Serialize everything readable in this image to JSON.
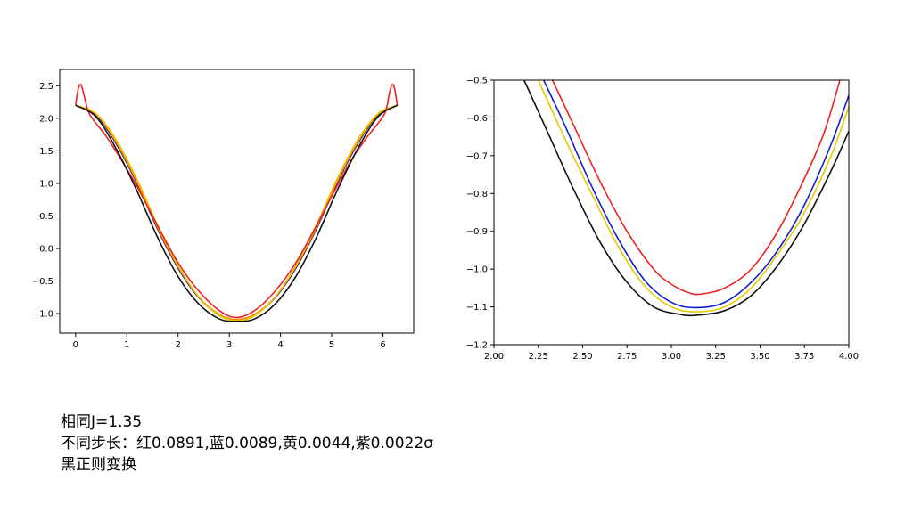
{
  "chart_data": [
    {
      "type": "line",
      "title": "",
      "xlabel": "",
      "ylabel": "",
      "xlim": [
        -0.31,
        6.6
      ],
      "ylim": [
        -1.3,
        2.75
      ],
      "xticks": [
        0,
        1,
        2,
        3,
        4,
        5,
        6
      ],
      "xtick_labels": [
        "0",
        "1",
        "2",
        "3",
        "4",
        "5",
        "6"
      ],
      "yticks": [
        -1.0,
        -0.5,
        0.0,
        0.5,
        1.0,
        1.5,
        2.0,
        2.5
      ],
      "ytick_labels": [
        "−1.0",
        "−0.5",
        "0.0",
        "0.5",
        "1.0",
        "1.5",
        "2.0",
        "2.5"
      ],
      "grid": false,
      "series": [
        {
          "color": "#00008b",
          "x": [
            0,
            0.4,
            0.8,
            1.2,
            1.6,
            2.0,
            2.4,
            2.8,
            3.14,
            3.5,
            3.9,
            4.3,
            4.7,
            5.1,
            5.5,
            5.9,
            6.28
          ],
          "values": [
            2.2,
            2.05,
            1.6,
            1.0,
            0.3,
            -0.3,
            -0.75,
            -1.02,
            -1.1,
            -1.02,
            -0.75,
            -0.3,
            0.3,
            1.0,
            1.6,
            2.05,
            2.2
          ]
        },
        {
          "color": "#ff8c00",
          "x": [
            0,
            0.4,
            0.8,
            1.2,
            1.6,
            2.0,
            2.4,
            2.8,
            3.14,
            3.5,
            3.9,
            4.3,
            4.7,
            5.1,
            5.5,
            5.9,
            6.28
          ],
          "values": [
            2.2,
            2.06,
            1.62,
            1.02,
            0.32,
            -0.28,
            -0.74,
            -1.01,
            -1.09,
            -1.01,
            -0.74,
            -0.28,
            0.32,
            1.02,
            1.62,
            2.06,
            2.2
          ]
        },
        {
          "color": "#e8c800",
          "x": [
            0,
            0.4,
            0.8,
            1.2,
            1.6,
            2.0,
            2.4,
            2.8,
            3.14,
            3.5,
            3.9,
            4.3,
            4.7,
            5.1,
            5.5,
            5.9,
            6.28
          ],
          "values": [
            2.2,
            2.07,
            1.66,
            1.06,
            0.36,
            -0.26,
            -0.74,
            -1.03,
            -1.11,
            -1.03,
            -0.74,
            -0.26,
            0.36,
            1.06,
            1.66,
            2.07,
            2.2
          ]
        },
        {
          "color": "#ee2222",
          "x": [
            0.0,
            0.05,
            0.1,
            0.15,
            0.25,
            0.4,
            0.6,
            0.9,
            1.2,
            1.6,
            2.0,
            2.4,
            2.8,
            3.14,
            3.5,
            3.9,
            4.3,
            4.7,
            5.1,
            5.4,
            5.7,
            5.9,
            6.05,
            6.13,
            6.18,
            6.23,
            6.28
          ],
          "values": [
            2.2,
            2.45,
            2.52,
            2.4,
            2.1,
            1.92,
            1.72,
            1.35,
            0.95,
            0.35,
            -0.22,
            -0.65,
            -0.95,
            -1.06,
            -0.95,
            -0.65,
            -0.22,
            0.35,
            0.95,
            1.38,
            1.72,
            1.92,
            2.1,
            2.4,
            2.52,
            2.45,
            2.2
          ]
        },
        {
          "color": "#111111",
          "x": [
            0,
            0.4,
            0.8,
            1.2,
            1.6,
            2.0,
            2.4,
            2.8,
            3.14,
            3.5,
            3.9,
            4.3,
            4.7,
            5.1,
            5.5,
            5.9,
            6.28
          ],
          "values": [
            2.2,
            2.02,
            1.52,
            0.88,
            0.17,
            -0.43,
            -0.85,
            -1.08,
            -1.12,
            -1.08,
            -0.85,
            -0.43,
            0.17,
            0.88,
            1.52,
            2.02,
            2.2
          ]
        }
      ]
    },
    {
      "type": "line",
      "title": "",
      "xlabel": "",
      "ylabel": "",
      "xlim": [
        2.0,
        4.0
      ],
      "ylim": [
        -1.2,
        -0.5
      ],
      "xticks": [
        2.0,
        2.25,
        2.5,
        2.75,
        3.0,
        3.25,
        3.5,
        3.75,
        4.0
      ],
      "xtick_labels": [
        "2.00",
        "2.25",
        "2.50",
        "2.75",
        "3.00",
        "3.25",
        "3.50",
        "3.75",
        "4.00"
      ],
      "yticks": [
        -1.2,
        -1.1,
        -1.0,
        -0.9,
        -0.8,
        -0.7,
        -0.6,
        -0.5
      ],
      "ytick_labels": [
        "−1.2",
        "−1.1",
        "−1.0",
        "−0.9",
        "−0.8",
        "−0.7",
        "−0.6",
        "−0.5"
      ],
      "grid": false,
      "series": [
        {
          "color": "#ee2222",
          "x": [
            2.33,
            2.45,
            2.6,
            2.75,
            2.9,
            3.0,
            3.1,
            3.17,
            3.3,
            3.45,
            3.6,
            3.75,
            3.86,
            3.95
          ],
          "values": [
            -0.5,
            -0.62,
            -0.77,
            -0.9,
            -1.0,
            -1.04,
            -1.063,
            -1.066,
            -1.05,
            -1.0,
            -0.9,
            -0.76,
            -0.64,
            -0.5
          ]
        },
        {
          "color": "#1020d0",
          "x": [
            2.28,
            2.4,
            2.55,
            2.7,
            2.85,
            3.0,
            3.14,
            3.3,
            3.45,
            3.6,
            3.75,
            3.9,
            4.0
          ],
          "values": [
            -0.5,
            -0.62,
            -0.78,
            -0.92,
            -1.03,
            -1.088,
            -1.102,
            -1.088,
            -1.035,
            -0.95,
            -0.83,
            -0.67,
            -0.54
          ]
        },
        {
          "color": "#e8c800",
          "x": [
            2.25,
            2.4,
            2.55,
            2.7,
            2.85,
            3.0,
            3.14,
            3.3,
            3.45,
            3.6,
            3.75,
            3.9,
            4.0
          ],
          "values": [
            -0.5,
            -0.655,
            -0.8,
            -0.94,
            -1.045,
            -1.1,
            -1.113,
            -1.1,
            -1.05,
            -0.96,
            -0.85,
            -0.7,
            -0.57
          ]
        },
        {
          "color": "#111111",
          "x": [
            2.17,
            2.3,
            2.45,
            2.6,
            2.75,
            2.9,
            3.05,
            3.14,
            3.3,
            3.45,
            3.6,
            3.75,
            3.9,
            4.0
          ],
          "values": [
            -0.5,
            -0.635,
            -0.79,
            -0.93,
            -1.035,
            -1.1,
            -1.12,
            -1.122,
            -1.11,
            -1.07,
            -0.99,
            -0.88,
            -0.74,
            -0.635
          ]
        }
      ]
    }
  ],
  "caption": {
    "line1": "相同J=1.35",
    "line2": "不同步长：红0.0891,蓝0.0089,黄0.0044,紫0.0022σ",
    "line3": "黑正则变换"
  }
}
